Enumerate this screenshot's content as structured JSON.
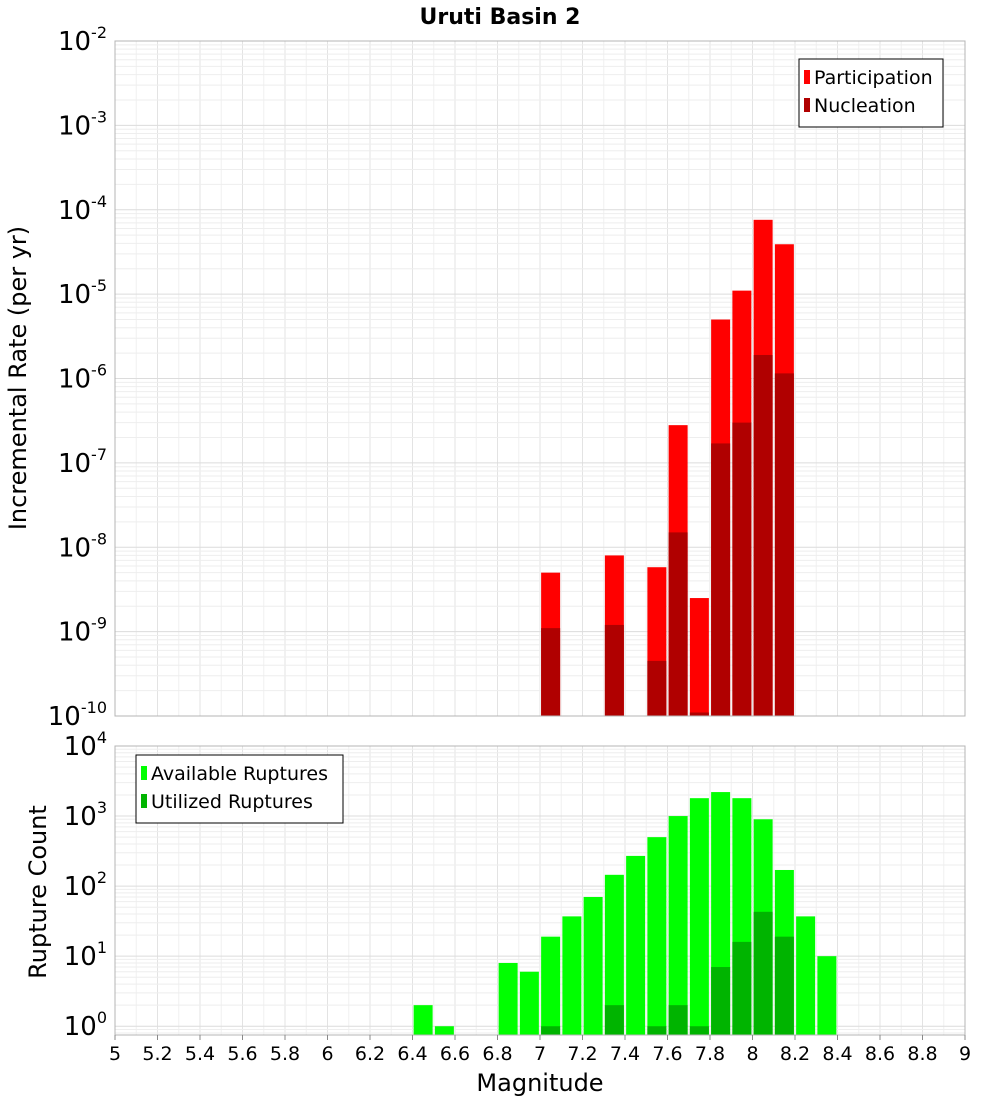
{
  "title": "Uruti Basin 2",
  "xlabel": "Magnitude",
  "colors": {
    "participation": "#ff0000",
    "nucleation": "#b00000",
    "available": "#00ff00",
    "utilized": "#00b400"
  },
  "chart_data": [
    {
      "type": "bar",
      "title": "Uruti Basin 2",
      "xlabel": "Magnitude",
      "ylabel": "Incremental Rate (per yr)",
      "yscale": "log",
      "xlim": [
        5,
        9
      ],
      "ylim": [
        1e-10,
        0.01
      ],
      "y_tick_exponents": [
        -10,
        -9,
        -8,
        -7,
        -6,
        -5,
        -4,
        -3,
        -2
      ],
      "legend_position": "top-right",
      "grid": true,
      "series": [
        {
          "name": "Participation",
          "color": "#ff0000",
          "x": [
            7.05,
            7.35,
            7.55,
            7.65,
            7.75,
            7.85,
            7.95,
            8.05,
            8.15
          ],
          "values": [
            5e-09,
            8e-09,
            5.8e-09,
            2.8e-07,
            2.5e-09,
            5e-06,
            1.1e-05,
            7.6e-05,
            3.9e-05
          ]
        },
        {
          "name": "Nucleation",
          "color": "#b00000",
          "x": [
            7.05,
            7.35,
            7.55,
            7.65,
            7.75,
            7.85,
            7.95,
            8.05,
            8.15
          ],
          "values": [
            1.1e-09,
            1.2e-09,
            4.5e-10,
            1.5e-08,
            1.1e-10,
            1.7e-07,
            3e-07,
            1.9e-06,
            1.15e-06
          ]
        }
      ]
    },
    {
      "type": "bar",
      "xlabel": "Magnitude",
      "ylabel": "Rupture Count",
      "yscale": "log",
      "xlim": [
        5,
        9
      ],
      "ylim": [
        0.75,
        10000.0
      ],
      "y_tick_exponents": [
        0,
        1,
        2,
        3,
        4
      ],
      "x_ticks": [
        "5",
        "5.2",
        "5.4",
        "5.6",
        "5.8",
        "6",
        "6.2",
        "6.4",
        "6.6",
        "6.8",
        "7",
        "7.2",
        "7.4",
        "7.6",
        "7.8",
        "8",
        "8.2",
        "8.4",
        "8.6",
        "8.8",
        "9"
      ],
      "legend_position": "top-left",
      "grid": true,
      "series": [
        {
          "name": "Available Ruptures",
          "color": "#00ff00",
          "x": [
            6.45,
            6.55,
            6.85,
            6.95,
            7.05,
            7.15,
            7.25,
            7.35,
            7.45,
            7.55,
            7.65,
            7.75,
            7.85,
            7.95,
            8.05,
            8.15,
            8.25,
            8.35
          ],
          "values": [
            2,
            1,
            8,
            6,
            19,
            37,
            70,
            145,
            270,
            500,
            1000,
            1800,
            2200,
            1800,
            900,
            170,
            37,
            10
          ]
        },
        {
          "name": "Utilized Ruptures",
          "color": "#00b400",
          "x": [
            7.05,
            7.35,
            7.55,
            7.65,
            7.75,
            7.85,
            7.95,
            8.05,
            8.15
          ],
          "values": [
            1,
            2,
            1,
            2,
            1,
            7,
            16,
            43,
            19
          ]
        }
      ]
    }
  ]
}
